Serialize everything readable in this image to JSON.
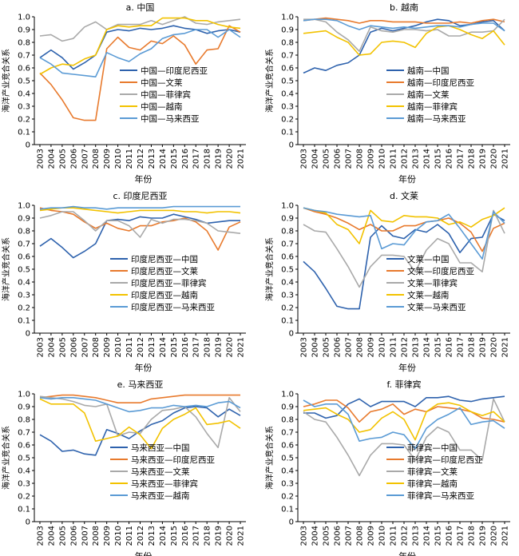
{
  "chart_data": [
    {
      "type": "line",
      "title": "a. 中国",
      "xlabel": "年份",
      "ylabel": "海洋产业竞合关系",
      "ylim": [
        0,
        1.0
      ],
      "yticks": [
        "0",
        "0.1",
        "0.2",
        "0.3",
        "0.4",
        "0.5",
        "0.6",
        "0.7",
        "0.8",
        "0.9",
        "1.0"
      ],
      "x": [
        "2003",
        "2004",
        "2005",
        "2006",
        "2007",
        "2008",
        "2009",
        "2010",
        "2011",
        "2012",
        "2013",
        "2014",
        "2015",
        "2016",
        "2017",
        "2018",
        "2019",
        "2020",
        "2021"
      ],
      "legend_position": "center",
      "series": [
        {
          "name": "中国—印度尼西亚",
          "color": "#2e62ad",
          "values": [
            0.68,
            0.74,
            0.68,
            0.59,
            0.64,
            0.7,
            0.88,
            0.9,
            0.89,
            0.91,
            0.9,
            0.91,
            0.93,
            0.91,
            0.9,
            0.87,
            0.89,
            0.9,
            0.88
          ]
        },
        {
          "name": "中国—文莱",
          "color": "#e87a2d",
          "values": [
            0.56,
            0.47,
            0.35,
            0.21,
            0.19,
            0.19,
            0.75,
            0.84,
            0.76,
            0.74,
            0.81,
            0.79,
            0.85,
            0.78,
            0.63,
            0.74,
            0.75,
            0.93,
            0.88
          ]
        },
        {
          "name": "中国—菲律宾",
          "color": "#a9a9a9",
          "values": [
            0.85,
            0.86,
            0.81,
            0.83,
            0.92,
            0.96,
            0.9,
            0.94,
            0.94,
            0.94,
            0.97,
            0.94,
            0.97,
            1.0,
            0.95,
            0.94,
            0.96,
            0.97,
            0.98
          ]
        },
        {
          "name": "中国—越南",
          "color": "#f2c200",
          "values": [
            0.55,
            0.6,
            0.63,
            0.62,
            0.67,
            0.7,
            0.9,
            0.93,
            0.92,
            0.93,
            0.93,
            0.99,
            0.99,
            0.99,
            0.97,
            0.97,
            0.94,
            0.92,
            0.91
          ]
        },
        {
          "name": "中国—马来西亚",
          "color": "#5b9bd5",
          "values": [
            0.68,
            0.63,
            0.56,
            0.55,
            0.54,
            0.53,
            0.72,
            0.68,
            0.65,
            0.71,
            0.75,
            0.83,
            0.86,
            0.87,
            0.9,
            0.9,
            0.84,
            0.9,
            0.84
          ]
        }
      ]
    },
    {
      "type": "line",
      "title": "b. 越南",
      "xlabel": "年份",
      "ylabel": "海洋产业竞合关系",
      "ylim": [
        0,
        1.0
      ],
      "yticks": [
        "0",
        "0.1",
        "0.2",
        "0.3",
        "0.4",
        "0.5",
        "0.6",
        "0.7",
        "0.8",
        "0.9",
        "1.0"
      ],
      "x": [
        "2003",
        "2004",
        "2005",
        "2006",
        "2007",
        "2008",
        "2009",
        "2010",
        "2011",
        "2012",
        "2013",
        "2014",
        "2015",
        "2016",
        "2017",
        "2018",
        "2019",
        "2020",
        "2021"
      ],
      "legend_position": "center",
      "series": [
        {
          "name": "越南—中国",
          "color": "#2e62ad",
          "values": [
            0.56,
            0.6,
            0.58,
            0.62,
            0.64,
            0.7,
            0.88,
            0.91,
            0.89,
            0.91,
            0.93,
            0.96,
            0.98,
            0.97,
            0.93,
            0.94,
            0.96,
            0.97,
            0.89
          ]
        },
        {
          "name": "越南—印度尼西亚",
          "color": "#e87a2d",
          "values": [
            0.97,
            0.98,
            0.99,
            0.98,
            0.97,
            0.95,
            0.97,
            0.97,
            0.96,
            0.96,
            0.96,
            0.95,
            0.95,
            0.95,
            0.96,
            0.95,
            0.97,
            0.98,
            0.96
          ]
        },
        {
          "name": "越南—文莱",
          "color": "#a9a9a9",
          "values": [
            0.98,
            0.98,
            0.96,
            0.88,
            0.82,
            0.73,
            0.92,
            0.89,
            0.88,
            0.9,
            0.9,
            0.89,
            0.9,
            0.85,
            0.85,
            0.88,
            0.88,
            0.89,
            0.98
          ]
        },
        {
          "name": "越南—菲律宾",
          "color": "#f2c200",
          "values": [
            0.87,
            0.88,
            0.89,
            0.84,
            0.8,
            0.7,
            0.71,
            0.8,
            0.81,
            0.8,
            0.76,
            0.87,
            0.92,
            0.93,
            0.9,
            0.86,
            0.83,
            0.89,
            0.78
          ]
        },
        {
          "name": "越南—马来西亚",
          "color": "#5b9bd5",
          "values": [
            0.97,
            0.98,
            0.98,
            0.97,
            0.93,
            0.9,
            0.93,
            0.92,
            0.91,
            0.92,
            0.91,
            0.92,
            0.93,
            0.93,
            0.92,
            0.94,
            0.95,
            0.95,
            0.89
          ]
        }
      ]
    },
    {
      "type": "line",
      "title": "c. 印度尼西亚",
      "xlabel": "年份",
      "ylabel": "海洋产业竞合关系",
      "ylim": [
        0,
        1.0
      ],
      "yticks": [
        "0",
        "0.1",
        "0.2",
        "0.3",
        "0.4",
        "0.5",
        "0.6",
        "0.7",
        "0.8",
        "0.9",
        "1.0"
      ],
      "x": [
        "2003",
        "2004",
        "2005",
        "2006",
        "2007",
        "2008",
        "2009",
        "2010",
        "2011",
        "2012",
        "2013",
        "2014",
        "2015",
        "2016",
        "2017",
        "2018",
        "2019",
        "2020",
        "2021"
      ],
      "legend_position": "center",
      "series": [
        {
          "name": "印度尼西亚—中国",
          "color": "#2e62ad",
          "values": [
            0.68,
            0.74,
            0.67,
            0.59,
            0.64,
            0.7,
            0.88,
            0.89,
            0.88,
            0.91,
            0.9,
            0.9,
            0.93,
            0.91,
            0.89,
            0.86,
            0.87,
            0.88,
            0.88
          ]
        },
        {
          "name": "印度尼西亚—文莱",
          "color": "#e87a2d",
          "values": [
            0.98,
            0.96,
            0.95,
            0.93,
            0.87,
            0.82,
            0.86,
            0.82,
            0.8,
            0.84,
            0.84,
            0.87,
            0.88,
            0.9,
            0.87,
            0.8,
            0.65,
            0.83,
            0.87
          ]
        },
        {
          "name": "印度尼西亚—菲律宾",
          "color": "#a9a9a9",
          "values": [
            0.9,
            0.92,
            0.95,
            0.95,
            0.88,
            0.8,
            0.88,
            0.88,
            0.84,
            0.75,
            0.89,
            0.86,
            0.89,
            0.89,
            0.88,
            0.86,
            0.8,
            0.79,
            0.78
          ]
        },
        {
          "name": "印度尼西亚—越南",
          "color": "#f2c200",
          "values": [
            0.96,
            0.97,
            0.98,
            0.98,
            0.97,
            0.96,
            0.95,
            0.94,
            0.95,
            0.96,
            0.96,
            0.96,
            0.96,
            0.95,
            0.95,
            0.94,
            0.95,
            0.95,
            0.94
          ]
        },
        {
          "name": "印度尼西亚—马来西亚",
          "color": "#5b9bd5",
          "values": [
            0.97,
            0.98,
            0.98,
            0.99,
            0.98,
            0.98,
            0.97,
            0.98,
            0.98,
            0.98,
            0.98,
            0.98,
            0.99,
            0.99,
            0.99,
            0.99,
            0.99,
            0.99,
            0.99
          ]
        }
      ]
    },
    {
      "type": "line",
      "title": "d. 文莱",
      "xlabel": "年份",
      "ylabel": "海洋产业竞合关系",
      "ylim": [
        0,
        1.0
      ],
      "yticks": [
        "0",
        "0.1",
        "0.2",
        "0.3",
        "0.4",
        "0.5",
        "0.6",
        "0.7",
        "0.8",
        "0.9",
        "1.0"
      ],
      "x": [
        "2003",
        "2004",
        "2005",
        "2006",
        "2007",
        "2008",
        "2009",
        "2010",
        "2011",
        "2012",
        "2013",
        "2014",
        "2015",
        "2016",
        "2017",
        "2018",
        "2019",
        "2020",
        "2021"
      ],
      "legend_position": "center",
      "series": [
        {
          "name": "文莱—中国",
          "color": "#2e62ad",
          "values": [
            0.56,
            0.48,
            0.35,
            0.21,
            0.19,
            0.19,
            0.75,
            0.84,
            0.76,
            0.74,
            0.81,
            0.79,
            0.85,
            0.78,
            0.63,
            0.74,
            0.75,
            0.93,
            0.88
          ]
        },
        {
          "name": "文莱—印度尼西亚",
          "color": "#e87a2d",
          "values": [
            0.98,
            0.95,
            0.93,
            0.9,
            0.86,
            0.81,
            0.85,
            0.8,
            0.8,
            0.84,
            0.84,
            0.87,
            0.88,
            0.9,
            0.86,
            0.79,
            0.64,
            0.82,
            0.86
          ]
        },
        {
          "name": "文莱—菲律宾",
          "color": "#a9a9a9",
          "values": [
            0.85,
            0.8,
            0.79,
            0.66,
            0.52,
            0.36,
            0.52,
            0.61,
            0.61,
            0.6,
            0.48,
            0.65,
            0.74,
            0.7,
            0.55,
            0.55,
            0.48,
            0.96,
            0.78
          ]
        },
        {
          "name": "文莱—越南",
          "color": "#f2c200",
          "values": [
            0.98,
            0.96,
            0.94,
            0.85,
            0.81,
            0.7,
            0.96,
            0.88,
            0.87,
            0.92,
            0.91,
            0.91,
            0.9,
            0.85,
            0.87,
            0.83,
            0.89,
            0.92,
            0.98
          ]
        },
        {
          "name": "文莱—马来西亚",
          "color": "#5b9bd5",
          "values": [
            0.98,
            0.96,
            0.95,
            0.93,
            0.92,
            0.91,
            0.92,
            0.66,
            0.7,
            0.69,
            0.8,
            0.87,
            0.88,
            0.93,
            0.82,
            0.7,
            0.58,
            0.95,
            0.86
          ]
        }
      ]
    },
    {
      "type": "line",
      "title": "e. 马来西亚",
      "xlabel": "年份",
      "ylabel": "海洋产业竞合关系",
      "ylim": [
        0,
        1.0
      ],
      "yticks": [
        "0",
        "0.1",
        "0.2",
        "0.3",
        "0.4",
        "0.5",
        "0.6",
        "0.7",
        "0.8",
        "0.9",
        "1.0"
      ],
      "x": [
        "2003",
        "2004",
        "2005",
        "2006",
        "2007",
        "2008",
        "2009",
        "2010",
        "2011",
        "2012",
        "2013",
        "2014",
        "2015",
        "2016",
        "2017",
        "2018",
        "2019",
        "2020",
        "2021"
      ],
      "legend_position": "bottom-left",
      "series": [
        {
          "name": "马来西亚—中国",
          "color": "#2e62ad",
          "values": [
            0.68,
            0.63,
            0.55,
            0.56,
            0.53,
            0.52,
            0.72,
            0.69,
            0.65,
            0.71,
            0.76,
            0.79,
            0.85,
            0.89,
            0.9,
            0.89,
            0.82,
            0.88,
            0.83
          ]
        },
        {
          "name": "马来西亚—印度尼西亚",
          "color": "#e87a2d",
          "values": [
            0.97,
            0.98,
            0.99,
            0.99,
            0.98,
            0.97,
            0.95,
            0.93,
            0.93,
            0.93,
            0.96,
            0.97,
            0.98,
            0.99,
            0.99,
            0.99,
            0.99,
            0.99,
            0.99
          ]
        },
        {
          "name": "马来西亚—文莱",
          "color": "#a9a9a9",
          "values": [
            0.98,
            0.97,
            0.96,
            0.94,
            0.91,
            0.9,
            0.92,
            0.67,
            0.7,
            0.69,
            0.8,
            0.87,
            0.88,
            0.9,
            0.82,
            0.69,
            0.58,
            0.97,
            0.86
          ]
        },
        {
          "name": "马来西亚—菲律宾",
          "color": "#f2c200",
          "values": [
            0.96,
            0.92,
            0.92,
            0.92,
            0.85,
            0.63,
            0.65,
            0.67,
            0.74,
            0.68,
            0.57,
            0.73,
            0.8,
            0.84,
            0.89,
            0.76,
            0.77,
            0.79,
            0.73
          ]
        },
        {
          "name": "马来西亚—越南",
          "color": "#5b9bd5",
          "values": [
            0.97,
            0.96,
            0.97,
            0.97,
            0.96,
            0.95,
            0.92,
            0.89,
            0.86,
            0.87,
            0.89,
            0.89,
            0.91,
            0.9,
            0.91,
            0.9,
            0.93,
            0.94,
            0.89
          ]
        }
      ]
    },
    {
      "type": "line",
      "title": "f. 菲律宾",
      "xlabel": "年份",
      "ylabel": "海洋产业竞合关系",
      "ylim": [
        0,
        1.0
      ],
      "yticks": [
        "0",
        "0.1",
        "0.2",
        "0.3",
        "0.4",
        "0.5",
        "0.6",
        "0.7",
        "0.8",
        "0.9",
        "1.0"
      ],
      "x": [
        "2003",
        "2004",
        "2005",
        "2006",
        "2007",
        "2008",
        "2009",
        "2010",
        "2011",
        "2012",
        "2013",
        "2014",
        "2015",
        "2016",
        "2017",
        "2018",
        "2019",
        "2020",
        "2021"
      ],
      "legend_position": "bottom-left",
      "series": [
        {
          "name": "菲律宾—中国",
          "color": "#2e62ad",
          "values": [
            0.85,
            0.85,
            0.81,
            0.83,
            0.92,
            0.96,
            0.9,
            0.94,
            0.94,
            0.94,
            0.9,
            0.97,
            0.97,
            0.98,
            0.95,
            0.94,
            0.96,
            0.97,
            0.98
          ]
        },
        {
          "name": "菲律宾—印度尼西亚",
          "color": "#e87a2d",
          "values": [
            0.9,
            0.92,
            0.95,
            0.95,
            0.89,
            0.78,
            0.86,
            0.88,
            0.92,
            0.84,
            0.88,
            0.86,
            0.9,
            0.89,
            0.88,
            0.86,
            0.81,
            0.8,
            0.78
          ]
        },
        {
          "name": "菲律宾—文莱",
          "color": "#a9a9a9",
          "values": [
            0.86,
            0.8,
            0.78,
            0.66,
            0.52,
            0.36,
            0.52,
            0.61,
            0.61,
            0.6,
            0.48,
            0.66,
            0.74,
            0.7,
            0.56,
            0.56,
            0.48,
            0.96,
            0.78
          ]
        },
        {
          "name": "菲律宾—越南",
          "color": "#f2c200",
          "values": [
            0.87,
            0.88,
            0.89,
            0.84,
            0.8,
            0.7,
            0.72,
            0.81,
            0.86,
            0.8,
            0.64,
            0.86,
            0.92,
            0.93,
            0.91,
            0.86,
            0.83,
            0.86,
            0.78
          ]
        },
        {
          "name": "菲律宾—马来西亚",
          "color": "#5b9bd5",
          "values": [
            0.95,
            0.9,
            0.92,
            0.92,
            0.84,
            0.63,
            0.65,
            0.66,
            0.7,
            0.68,
            0.57,
            0.73,
            0.8,
            0.84,
            0.89,
            0.76,
            0.78,
            0.79,
            0.73
          ]
        }
      ]
    }
  ]
}
